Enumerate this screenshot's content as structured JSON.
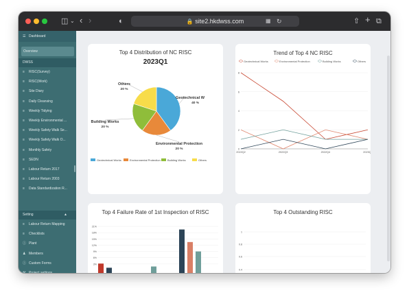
{
  "browser": {
    "url": "site2.hkdwss.com"
  },
  "sidebar": {
    "dashboard_label": "Dashboard",
    "overview_label": "Overview",
    "group_label": "DWSS",
    "items": [
      {
        "label": "RISC(Survey)",
        "icon": "list-icon"
      },
      {
        "label": "RISC(Work)",
        "icon": "list-icon"
      },
      {
        "label": "Site Diary",
        "icon": "list-icon"
      },
      {
        "label": "Daily Cleansing",
        "icon": "list-icon"
      },
      {
        "label": "Weekly Tidying",
        "icon": "list-icon"
      },
      {
        "label": "Weekly Environmental ...",
        "icon": "list-icon"
      },
      {
        "label": "Weekly Safety Walk Se...",
        "icon": "list-icon"
      },
      {
        "label": "Weekly Safety Walk O...",
        "icon": "list-icon"
      },
      {
        "label": "Monthly Safety",
        "icon": "list-icon"
      },
      {
        "label": "SEDN",
        "icon": "list-icon"
      },
      {
        "label": "Labour Return 2017",
        "icon": "list-icon"
      },
      {
        "label": "Labour Return 2003",
        "icon": "list-icon"
      },
      {
        "label": "Data Standardization R...",
        "icon": "list-icon"
      }
    ],
    "setting_label": "Setting",
    "setting_items": [
      {
        "label": "Labour Return Mapping",
        "icon": "list-icon"
      },
      {
        "label": "Checklists",
        "icon": "list-icon"
      },
      {
        "label": "Plant",
        "icon": "info-icon"
      },
      {
        "label": "Members",
        "icon": "users-icon"
      },
      {
        "label": "Custom Forms",
        "icon": "info-icon"
      },
      {
        "label": "Project settings",
        "icon": "tools-icon"
      }
    ]
  },
  "colors": {
    "geotechnical": "#4aa8d8",
    "environmental": "#e8893a",
    "building": "#8fbd3a",
    "others": "#f7dc4a",
    "bar_dark": "#2c4457",
    "bar_red": "#c0392b",
    "bar_salmon": "#d97f66",
    "bar_teal": "#6f9e9a",
    "line_red": "#c7452f",
    "line_salmon": "#e0876e"
  },
  "cards": {
    "pie_title": "Top 4 Distribution of NC RISC",
    "pie_subtitle": "2023Q1",
    "trend_title": "Trend of Top 4 NC RISC",
    "failure_title": "Top 4 Failure Rate of 1st Inspection of RISC",
    "outstanding_title": "Top 4 Outstanding RISC"
  },
  "chart_data": [
    {
      "type": "pie",
      "title": "Top 4 Distribution of NC RISC",
      "subtitle": "2023Q1",
      "slices": [
        {
          "label": "Geotechnical W",
          "value": 40,
          "display": "40 %"
        },
        {
          "label": "Environmental Protection",
          "value": 20,
          "display": "20 %"
        },
        {
          "label": "Building Works",
          "value": 20,
          "display": "20 %"
        },
        {
          "label": "Others",
          "value": 20,
          "display": "20 %"
        }
      ],
      "legend": [
        "Geotechnical Works",
        "Environmental Protection",
        "Building Works",
        "Others"
      ],
      "legend_position": "bottom"
    },
    {
      "type": "line",
      "title": "Trend of Top 4 NC RISC",
      "categories": [
        "2022Q2",
        "2022Q3",
        "2022Q4",
        "2023Q1"
      ],
      "ylim": [
        0,
        8
      ],
      "yticks": [
        0,
        2,
        4,
        6,
        8
      ],
      "series": [
        {
          "name": "Geotechnical Works",
          "values": [
            8,
            5,
            1,
            2
          ]
        },
        {
          "name": "Environmental Protection",
          "values": [
            2,
            0,
            2,
            1
          ]
        },
        {
          "name": "Building Works",
          "values": [
            1,
            2,
            1,
            1
          ]
        },
        {
          "name": "Others",
          "values": [
            0,
            1,
            0,
            1
          ]
        }
      ],
      "legend_position": "top"
    },
    {
      "type": "bar",
      "title": "Top 4 Failure Rate of 1st Inspection of RISC",
      "ylim": [
        0,
        21
      ],
      "yticks": [
        "3%",
        "6%",
        "9%",
        "12%",
        "15%",
        "18%",
        "21%"
      ],
      "groups": [
        {
          "values": [
            3.2,
            1.2
          ]
        },
        {
          "values": [
            1.8
          ]
        },
        {
          "values": [
            19.5,
            13.5,
            9
          ]
        }
      ]
    },
    {
      "type": "bar",
      "title": "Top 4 Outstanding RISC",
      "ylim": [
        0,
        1
      ],
      "yticks": [
        "0.4",
        "0.6",
        "0.8",
        "1"
      ],
      "series": []
    }
  ]
}
